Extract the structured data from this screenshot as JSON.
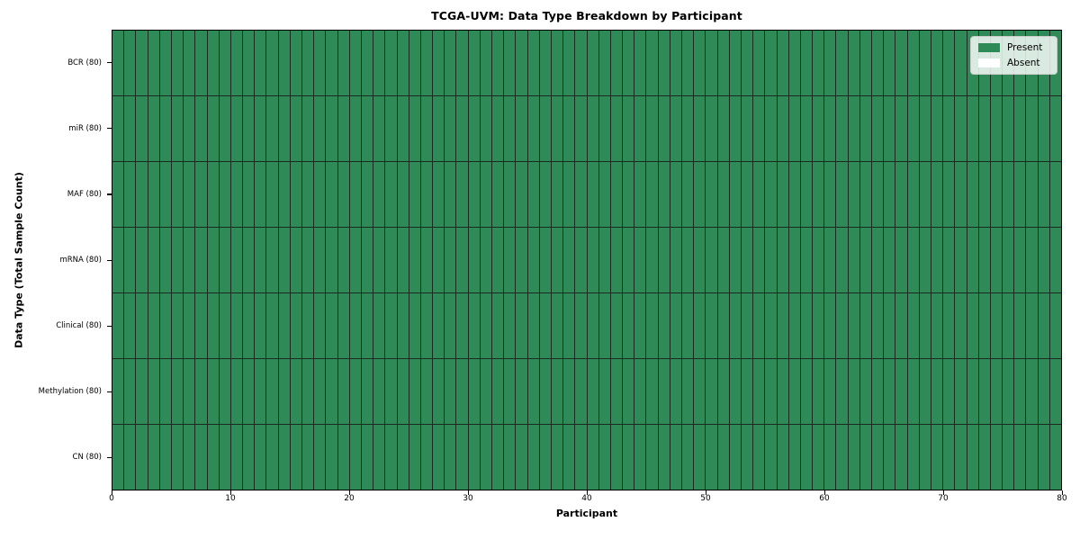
{
  "colors": {
    "present": "#2e8b57",
    "absent": "#ffffff",
    "grid_line": "#1c2b22",
    "spine": "#000000",
    "legend_bg": "rgba(255,255,255,0.82)",
    "legend_border": "#cccccc"
  },
  "chart_data": {
    "type": "heatmap",
    "title": "TCGA-UVM: Data Type Breakdown by Participant",
    "xlabel": "Participant",
    "ylabel": "Data Type (Total Sample Count)",
    "legend_entries": [
      "Present",
      "Absent"
    ],
    "legend_position": "upper right",
    "grid": "cell-borders",
    "x_range": [
      0,
      80
    ],
    "x_tick_values": [
      0,
      10,
      20,
      30,
      40,
      50,
      60,
      70,
      80
    ],
    "n_participants": 80,
    "rows": [
      {
        "label": "BCR (80)",
        "present": 80,
        "absent": 0
      },
      {
        "label": "miR (80)",
        "present": 80,
        "absent": 0
      },
      {
        "label": "MAF (80)",
        "present": 80,
        "absent": 0
      },
      {
        "label": "mRNA (80)",
        "present": 80,
        "absent": 0
      },
      {
        "label": "Clinical (80)",
        "present": 80,
        "absent": 0
      },
      {
        "label": "Methylation (80)",
        "present": 80,
        "absent": 0
      },
      {
        "label": "CN (80)",
        "present": 80,
        "absent": 0
      }
    ]
  }
}
